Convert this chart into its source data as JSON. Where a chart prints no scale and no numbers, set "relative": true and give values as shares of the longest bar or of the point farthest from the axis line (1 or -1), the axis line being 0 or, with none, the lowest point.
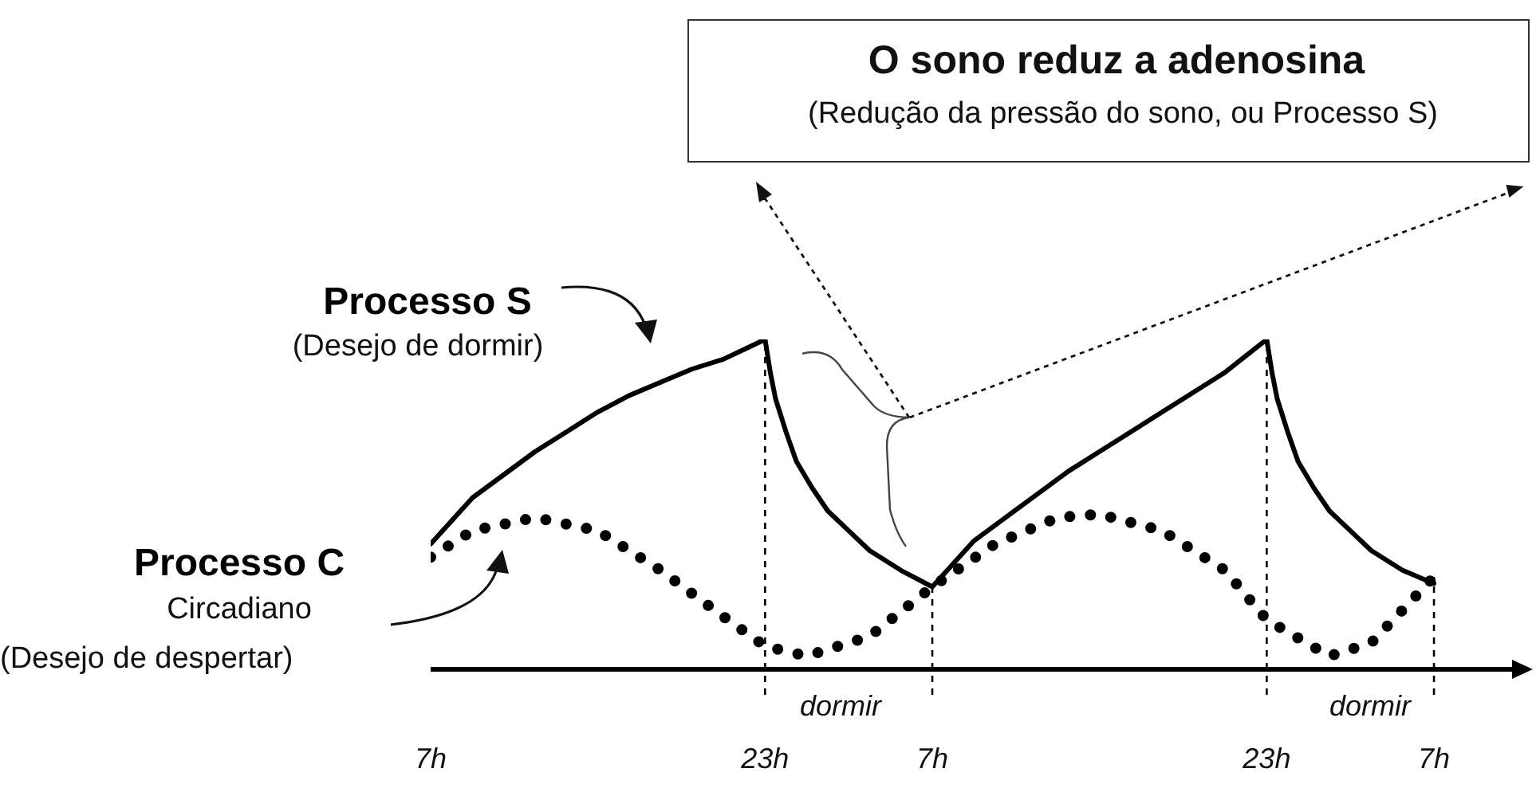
{
  "chart_data": {
    "type": "line",
    "relative": true,
    "legend": false,
    "x": [
      "--01-01T07:00",
      "--01-01T08:00",
      "--01-01T09:00",
      "--01-01T10:30",
      "--01-01T12:00",
      "--01-01T13:30",
      "--01-01T15:00",
      "--01-01T16:30",
      "--01-01T18:00",
      "--01-01T19:30",
      "--01-01T21:00",
      "--01-01T22:00",
      "--01-01T23:00",
      "--01-01T23:15",
      "--01-01T23:30",
      "--01-02T00:00",
      "--01-02T00:30",
      "--01-02T01:15",
      "--01-02T02:00",
      "--01-02T03:00",
      "--01-02T04:00",
      "--01-02T05:30",
      "--01-02T07:00",
      "--01-02T08:00",
      "--01-02T09:00",
      "--01-02T10:30",
      "--01-02T12:00",
      "--01-02T13:30",
      "--01-02T15:00",
      "--01-02T16:30",
      "--01-02T18:00",
      "--01-02T19:30",
      "--01-02T21:00",
      "--01-02T22:00",
      "--01-02T23:00",
      "--01-02T23:15",
      "--01-02T23:30",
      "--01-03T00:00",
      "--01-03T00:30",
      "--01-03T01:15",
      "--01-03T02:00",
      "--01-03T03:00",
      "--01-03T04:00",
      "--01-03T05:30",
      "--01-03T07:00"
    ],
    "xlim": [
      "--01-01T07:00",
      "--01-03T11:30"
    ],
    "xticks": [
      {
        "value": "--01-01T07:00",
        "label": "7h"
      },
      {
        "value": "--01-01T23:00",
        "label": "23h"
      },
      {
        "value": "--01-02T07:00",
        "label": "7h"
      },
      {
        "value": "--01-02T23:00",
        "label": "23h"
      },
      {
        "value": "--01-03T07:00",
        "label": "7h"
      }
    ],
    "series": [
      {
        "name": "Processo S",
        "color": "#000000",
        "line_style": "solid",
        "values": [
          0.38,
          0.45,
          0.52,
          0.59,
          0.66,
          0.72,
          0.78,
          0.83,
          0.87,
          0.91,
          0.94,
          0.97,
          1.0,
          0.9,
          0.82,
          0.72,
          0.63,
          0.55,
          0.48,
          0.42,
          0.36,
          0.3,
          0.25,
          0.32,
          0.39,
          0.46,
          0.53,
          0.6,
          0.66,
          0.72,
          0.78,
          0.84,
          0.9,
          0.95,
          1.0,
          0.9,
          0.82,
          0.72,
          0.63,
          0.55,
          0.48,
          0.42,
          0.36,
          0.3,
          0.26
        ]
      },
      {
        "name": "Processo C",
        "color": "#000000",
        "line_style": "dotted",
        "x": [
          "--01-01T07:00",
          "--01-01T09:00",
          "--01-01T12:00",
          "--01-01T15:00",
          "--01-01T18:00",
          "--01-01T21:00",
          "--01-01T23:00",
          "--01-02T01:00",
          "--01-02T04:00",
          "--01-02T07:00",
          "--01-02T10:00",
          "--01-02T13:00",
          "--01-02T15:00",
          "--01-02T18:00",
          "--01-02T21:00",
          "--01-02T23:00",
          "--01-03T02:00",
          "--01-03T04:00",
          "--01-03T07:00"
        ],
        "values": [
          0.34,
          0.42,
          0.46,
          0.42,
          0.3,
          0.16,
          0.07,
          0.04,
          0.1,
          0.25,
          0.38,
          0.46,
          0.47,
          0.42,
          0.3,
          0.15,
          0.04,
          0.08,
          0.28
        ]
      }
    ],
    "ref_lines": [
      {
        "axis": "x",
        "value": "--01-01T23:00",
        "line_style": "dashed"
      },
      {
        "axis": "x",
        "value": "--01-02T07:00",
        "line_style": "dashed"
      },
      {
        "axis": "x",
        "value": "--01-02T23:00",
        "line_style": "dashed"
      },
      {
        "axis": "x",
        "value": "--01-03T07:00",
        "line_style": "dashed"
      }
    ],
    "annotations": [
      "(Desejo de dormir)",
      "Circadiano",
      "(Desejo de despertar)",
      "O sono reduz a adenosina",
      "(Redução da pressão do sono, ou Processo S)",
      "dormir",
      "dormir"
    ]
  }
}
